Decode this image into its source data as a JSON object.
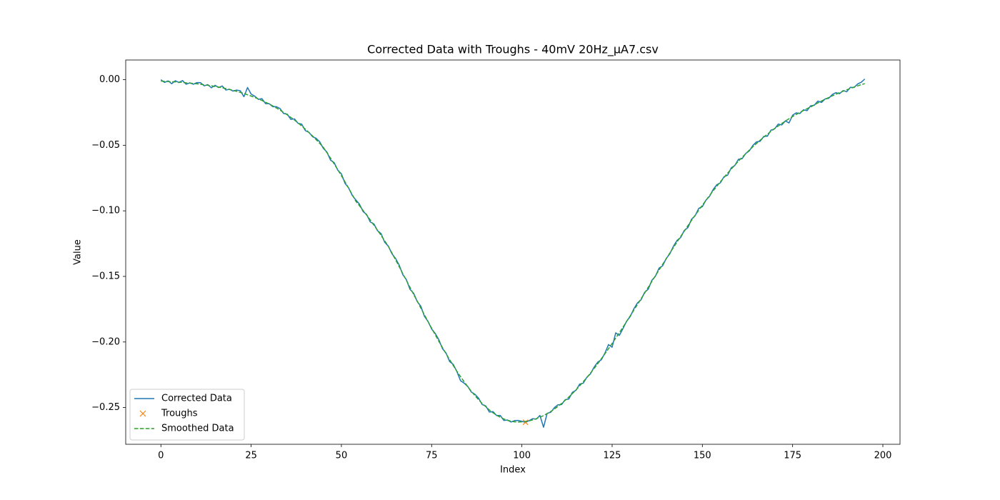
{
  "chart_data": {
    "type": "line",
    "title": "Corrected Data with Troughs - 40mV 20Hz_µA7.csv",
    "x_label": "Index",
    "y_label": "Value",
    "x": [
      0,
      1,
      2,
      3,
      4,
      5,
      6,
      7,
      8,
      9,
      10,
      11,
      12,
      13,
      14,
      15,
      16,
      17,
      18,
      19,
      20,
      21,
      22,
      23,
      24,
      25,
      26,
      27,
      28,
      29,
      30,
      31,
      32,
      33,
      34,
      35,
      36,
      37,
      38,
      39,
      40,
      41,
      42,
      43,
      44,
      45,
      46,
      47,
      48,
      49,
      50,
      51,
      52,
      53,
      54,
      55,
      56,
      57,
      58,
      59,
      60,
      61,
      62,
      63,
      64,
      65,
      66,
      67,
      68,
      69,
      70,
      71,
      72,
      73,
      74,
      75,
      76,
      77,
      78,
      79,
      80,
      81,
      82,
      83,
      84,
      85,
      86,
      87,
      88,
      89,
      90,
      91,
      92,
      93,
      94,
      95,
      96,
      97,
      98,
      99,
      100,
      101,
      102,
      103,
      104,
      105,
      106,
      107,
      108,
      109,
      110,
      111,
      112,
      113,
      114,
      115,
      116,
      117,
      118,
      119,
      120,
      121,
      122,
      123,
      124,
      125,
      126,
      127,
      128,
      129,
      130,
      131,
      132,
      133,
      134,
      135,
      136,
      137,
      138,
      139,
      140,
      141,
      142,
      143,
      144,
      145,
      146,
      147,
      148,
      149,
      150,
      151,
      152,
      153,
      154,
      155,
      156,
      157,
      158,
      159,
      160,
      161,
      162,
      163,
      164,
      165,
      166,
      167,
      168,
      169,
      170,
      171,
      172,
      173,
      174,
      175,
      176,
      177,
      178,
      179,
      180,
      181,
      182,
      183,
      184,
      185,
      186,
      187,
      188,
      189,
      190,
      191,
      192,
      193,
      194,
      195
    ],
    "series": [
      {
        "name": "Corrected Data",
        "color": "#1f77b4",
        "linestyle": "solid",
        "values": [
          0.0,
          -0.0021,
          -0.0009,
          -0.0031,
          -0.0008,
          -0.0022,
          -0.0007,
          -0.0035,
          -0.0024,
          -0.0035,
          -0.0022,
          -0.0023,
          -0.0047,
          -0.0038,
          -0.0062,
          -0.0043,
          -0.006,
          -0.0048,
          -0.0079,
          -0.0073,
          -0.0087,
          -0.0079,
          -0.0085,
          -0.013,
          -0.006,
          -0.011,
          -0.0126,
          -0.015,
          -0.0145,
          -0.0183,
          -0.0183,
          -0.0206,
          -0.0206,
          -0.022,
          -0.0258,
          -0.0263,
          -0.0303,
          -0.0299,
          -0.0333,
          -0.0339,
          -0.0388,
          -0.0401,
          -0.0435,
          -0.0447,
          -0.0474,
          -0.0524,
          -0.0552,
          -0.0614,
          -0.0633,
          -0.069,
          -0.0718,
          -0.079,
          -0.0825,
          -0.0882,
          -0.0917,
          -0.0949,
          -0.1005,
          -0.1028,
          -0.1085,
          -0.11,
          -0.1151,
          -0.1174,
          -0.124,
          -0.1269,
          -0.1327,
          -0.1363,
          -0.1413,
          -0.1486,
          -0.1525,
          -0.1598,
          -0.1628,
          -0.1691,
          -0.1727,
          -0.1804,
          -0.1843,
          -0.1901,
          -0.1935,
          -0.1983,
          -0.2051,
          -0.2085,
          -0.215,
          -0.2171,
          -0.2226,
          -0.2295,
          -0.2314,
          -0.2339,
          -0.2382,
          -0.2399,
          -0.2428,
          -0.2477,
          -0.2488,
          -0.2534,
          -0.2531,
          -0.2561,
          -0.256,
          -0.2598,
          -0.2595,
          -0.261,
          -0.2599,
          -0.2598,
          -0.2605,
          -0.2612,
          -0.26,
          -0.2585,
          -0.2588,
          -0.256,
          -0.265,
          -0.2544,
          -0.2536,
          -0.2501,
          -0.2479,
          -0.2477,
          -0.244,
          -0.2435,
          -0.2384,
          -0.2368,
          -0.2321,
          -0.2314,
          -0.2269,
          -0.2243,
          -0.2192,
          -0.2154,
          -0.2136,
          -0.2085,
          -0.202,
          -0.204,
          -0.193,
          -0.195,
          -0.1898,
          -0.1842,
          -0.1807,
          -0.1748,
          -0.1703,
          -0.1679,
          -0.1622,
          -0.1598,
          -0.153,
          -0.1498,
          -0.1437,
          -0.1419,
          -0.1363,
          -0.1327,
          -0.1269,
          -0.1225,
          -0.1203,
          -0.1149,
          -0.1128,
          -0.1064,
          -0.1037,
          -0.0981,
          -0.0968,
          -0.0918,
          -0.0889,
          -0.0837,
          -0.0801,
          -0.0786,
          -0.074,
          -0.0728,
          -0.0672,
          -0.0654,
          -0.0607,
          -0.0603,
          -0.0563,
          -0.0543,
          -0.0501,
          -0.0474,
          -0.047,
          -0.0433,
          -0.0431,
          -0.0385,
          -0.0376,
          -0.0339,
          -0.0345,
          -0.0314,
          -0.033,
          -0.0271,
          -0.0253,
          -0.0258,
          -0.023,
          -0.0236,
          -0.0199,
          -0.0195,
          -0.0163,
          -0.0174,
          -0.0147,
          -0.0142,
          -0.0113,
          -0.0099,
          -0.0107,
          -0.0083,
          -0.0092,
          -0.0058,
          -0.006,
          -0.0033,
          -0.002,
          0.0005
        ]
      },
      {
        "name": "Troughs",
        "color": "#ff7f0e",
        "marker": "x",
        "x": [
          101
        ],
        "values": [
          -0.2612
        ]
      },
      {
        "name": "Smoothed Data",
        "color": "#2ca02c",
        "linestyle": "dashed",
        "values": [
          -0.0011,
          -0.0013,
          -0.0014,
          -0.0016,
          -0.0017,
          -0.0019,
          -0.0021,
          -0.0024,
          -0.0026,
          -0.0029,
          -0.0032,
          -0.0035,
          -0.0039,
          -0.0043,
          -0.0047,
          -0.0052,
          -0.0057,
          -0.0062,
          -0.0068,
          -0.0075,
          -0.0081,
          -0.0089,
          -0.0097,
          -0.0105,
          -0.0115,
          -0.0125,
          -0.0135,
          -0.0147,
          -0.0159,
          -0.0172,
          -0.0185,
          -0.02,
          -0.0216,
          -0.0232,
          -0.025,
          -0.0268,
          -0.0288,
          -0.0308,
          -0.033,
          -0.0353,
          -0.0377,
          -0.0403,
          -0.0429,
          -0.0457,
          -0.0486,
          -0.0516,
          -0.0557,
          -0.0599,
          -0.0642,
          -0.0687,
          -0.0732,
          -0.0779,
          -0.0827,
          -0.0876,
          -0.0927,
          -0.0961,
          -0.0997,
          -0.1033,
          -0.107,
          -0.1109,
          -0.1148,
          -0.1188,
          -0.1229,
          -0.1271,
          -0.1321,
          -0.1373,
          -0.1425,
          -0.1478,
          -0.153,
          -0.1583,
          -0.1637,
          -0.1688,
          -0.1741,
          -0.1793,
          -0.1845,
          -0.1895,
          -0.1945,
          -0.1995,
          -0.2043,
          -0.209,
          -0.2135,
          -0.218,
          -0.2223,
          -0.2264,
          -0.2303,
          -0.2341,
          -0.2376,
          -0.2409,
          -0.244,
          -0.2469,
          -0.2493,
          -0.2519,
          -0.254,
          -0.2558,
          -0.2574,
          -0.2587,
          -0.2597,
          -0.2604,
          -0.2609,
          -0.261,
          -0.2609,
          -0.2606,
          -0.2601,
          -0.2594,
          -0.2585,
          -0.2574,
          -0.2561,
          -0.2546,
          -0.253,
          -0.2511,
          -0.2491,
          -0.2469,
          -0.2445,
          -0.242,
          -0.2393,
          -0.2365,
          -0.2335,
          -0.2303,
          -0.2271,
          -0.2237,
          -0.2202,
          -0.2166,
          -0.2128,
          -0.209,
          -0.2051,
          -0.2011,
          -0.197,
          -0.1929,
          -0.1887,
          -0.1844,
          -0.1801,
          -0.1758,
          -0.1715,
          -0.1671,
          -0.1627,
          -0.1583,
          -0.1539,
          -0.1495,
          -0.1451,
          -0.1408,
          -0.1365,
          -0.1321,
          -0.1279,
          -0.1237,
          -0.1195,
          -0.1154,
          -0.1113,
          -0.1073,
          -0.1034,
          -0.0995,
          -0.0957,
          -0.092,
          -0.0883,
          -0.0847,
          -0.0813,
          -0.0778,
          -0.0745,
          -0.0713,
          -0.0681,
          -0.0651,
          -0.0621,
          -0.0592,
          -0.0565,
          -0.0537,
          -0.0511,
          -0.0486,
          -0.0462,
          -0.0438,
          -0.0416,
          -0.0394,
          -0.0373,
          -0.0353,
          -0.0334,
          -0.0316,
          -0.0298,
          -0.0281,
          -0.0265,
          -0.025,
          -0.0235,
          -0.0221,
          -0.0208,
          -0.0192,
          -0.0177,
          -0.0163,
          -0.0149,
          -0.0136,
          -0.0123,
          -0.0111,
          -0.0099,
          -0.0088,
          -0.0077,
          -0.0067,
          -0.0057,
          -0.0047,
          -0.0038,
          -0.003
        ]
      }
    ],
    "xlim": [
      -9.75,
      204.75
    ],
    "ylim": [
      -0.278,
      0.015
    ],
    "xticks": [
      0,
      25,
      50,
      75,
      100,
      125,
      150,
      175,
      200
    ],
    "yticks": [
      {
        "value": 0,
        "label": "0.00"
      },
      {
        "value": -0.05,
        "label": "−0.05"
      },
      {
        "value": -0.1,
        "label": "−0.10"
      },
      {
        "value": -0.15,
        "label": "−0.15"
      },
      {
        "value": -0.2,
        "label": "−0.20"
      },
      {
        "value": -0.25,
        "label": "−0.25"
      }
    ],
    "legend": "lower left"
  }
}
